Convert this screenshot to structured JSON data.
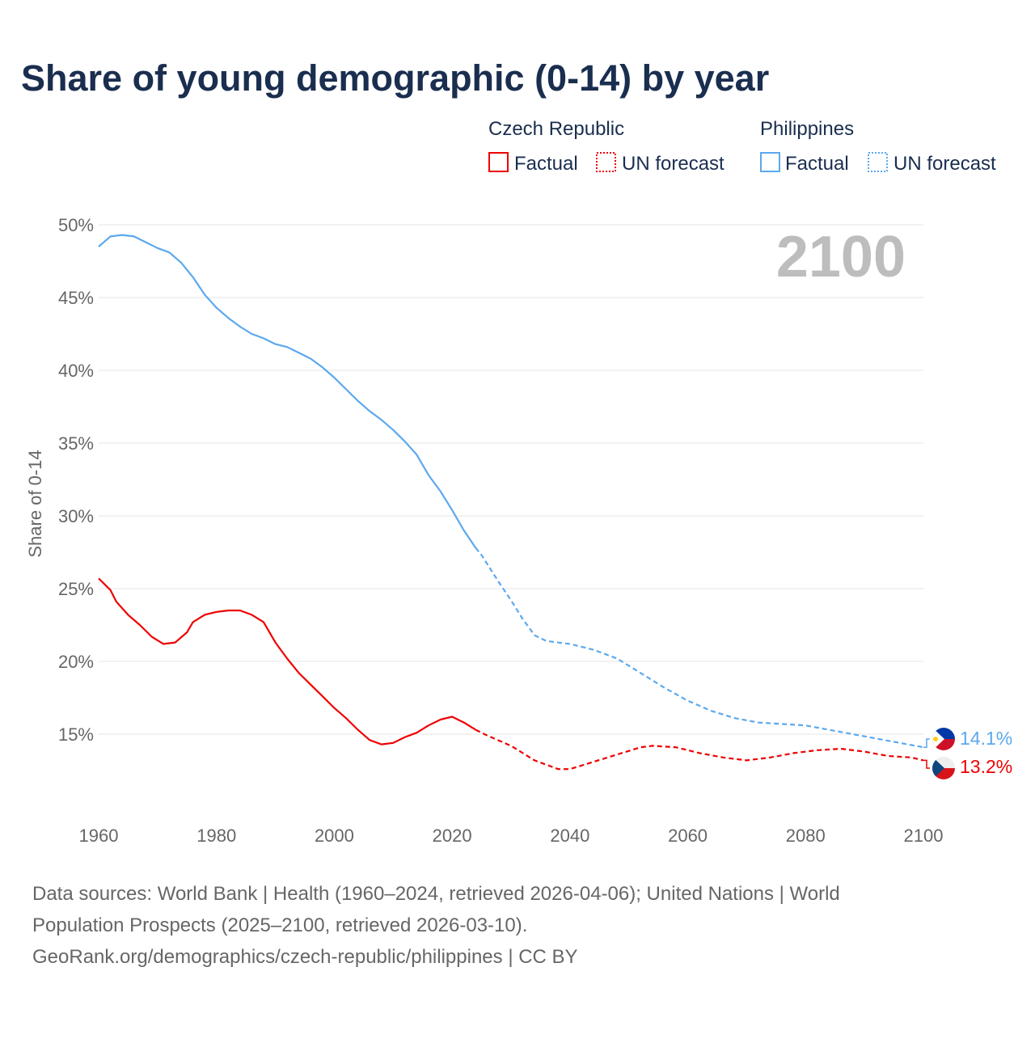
{
  "chart_data": {
    "type": "line",
    "title": "Share of young demographic (0-14) by year",
    "ylabel": "Share of 0-14",
    "xlabel": "",
    "xlim": [
      1960,
      2100
    ],
    "ylim": [
      10,
      50
    ],
    "yticks": [
      15,
      20,
      25,
      30,
      35,
      40,
      45,
      50
    ],
    "ytick_labels": [
      "15%",
      "20%",
      "25%",
      "30%",
      "35%",
      "40%",
      "45%",
      "50%"
    ],
    "xticks": [
      1960,
      1980,
      2000,
      2020,
      2040,
      2060,
      2080,
      2100
    ],
    "xtick_labels": [
      "1960",
      "1980",
      "2000",
      "2020",
      "2040",
      "2060",
      "2080",
      "2100"
    ],
    "grid": true,
    "year_label": "2100",
    "legend": {
      "placement": "top-right",
      "groups": [
        {
          "name": "Czech Republic",
          "factual": "Factual",
          "forecast": "UN forecast",
          "color": "#ee0000"
        },
        {
          "name": "Philippines",
          "factual": "Factual",
          "forecast": "UN forecast",
          "color": "#5ca8ee"
        }
      ]
    },
    "series": [
      {
        "name": "Philippines",
        "color": "#5ca8ee",
        "end_label": "14.1%",
        "factual": {
          "x": [
            1960,
            1962,
            1964,
            1966,
            1968,
            1970,
            1972,
            1974,
            1976,
            1978,
            1980,
            1982,
            1984,
            1986,
            1988,
            1990,
            1992,
            1994,
            1996,
            1998,
            2000,
            2002,
            2004,
            2006,
            2008,
            2010,
            2012,
            2014,
            2016,
            2018,
            2020,
            2022,
            2024
          ],
          "y": [
            48.5,
            49.2,
            49.3,
            49.2,
            48.8,
            48.4,
            48.1,
            47.4,
            46.4,
            45.2,
            44.3,
            43.6,
            43.0,
            42.5,
            42.2,
            41.8,
            41.6,
            41.2,
            40.8,
            40.2,
            39.5,
            38.7,
            37.9,
            37.2,
            36.6,
            35.9,
            35.1,
            34.2,
            32.8,
            31.7,
            30.4,
            29.0,
            27.8
          ]
        },
        "forecast": {
          "x": [
            2024,
            2025,
            2028,
            2030,
            2032,
            2034,
            2036,
            2040,
            2044,
            2048,
            2052,
            2056,
            2060,
            2064,
            2068,
            2072,
            2076,
            2080,
            2084,
            2088,
            2092,
            2096,
            2100
          ],
          "y": [
            27.8,
            27.3,
            25.4,
            24.2,
            22.9,
            21.8,
            21.4,
            21.2,
            20.8,
            20.2,
            19.2,
            18.2,
            17.3,
            16.6,
            16.1,
            15.8,
            15.7,
            15.6,
            15.3,
            15.0,
            14.7,
            14.4,
            14.1
          ]
        }
      },
      {
        "name": "Czech Republic",
        "color": "#ee0000",
        "end_label": "13.2%",
        "factual": {
          "x": [
            1960,
            1962,
            1963,
            1965,
            1967,
            1969,
            1971,
            1973,
            1975,
            1976,
            1978,
            1980,
            1982,
            1984,
            1986,
            1988,
            1990,
            1992,
            1994,
            1996,
            1998,
            2000,
            2002,
            2004,
            2006,
            2008,
            2010,
            2012,
            2014,
            2016,
            2018,
            2020,
            2022,
            2024
          ],
          "y": [
            25.7,
            24.9,
            24.1,
            23.2,
            22.5,
            21.7,
            21.2,
            21.3,
            22.0,
            22.7,
            23.2,
            23.4,
            23.5,
            23.5,
            23.2,
            22.7,
            21.3,
            20.2,
            19.2,
            18.4,
            17.6,
            16.8,
            16.1,
            15.3,
            14.6,
            14.3,
            14.4,
            14.8,
            15.1,
            15.6,
            16.0,
            16.2,
            15.8,
            15.3
          ]
        },
        "forecast": {
          "x": [
            2024,
            2026,
            2030,
            2034,
            2038,
            2040,
            2044,
            2048,
            2052,
            2054,
            2058,
            2062,
            2066,
            2070,
            2074,
            2078,
            2082,
            2086,
            2090,
            2094,
            2098,
            2100
          ],
          "y": [
            15.3,
            14.9,
            14.2,
            13.2,
            12.6,
            12.6,
            13.1,
            13.6,
            14.1,
            14.2,
            14.1,
            13.7,
            13.4,
            13.2,
            13.4,
            13.7,
            13.9,
            14.0,
            13.8,
            13.5,
            13.4,
            13.2
          ]
        }
      }
    ],
    "footer": {
      "line1": "Data sources: World Bank | Health (1960–2024, retrieved 2026-04-06); United Nations | World",
      "line2": "Population Prospects (2025–2100, retrieved 2026-03-10).",
      "line3": "GeoRank.org/demographics/czech-republic/philippines | CC BY"
    }
  }
}
